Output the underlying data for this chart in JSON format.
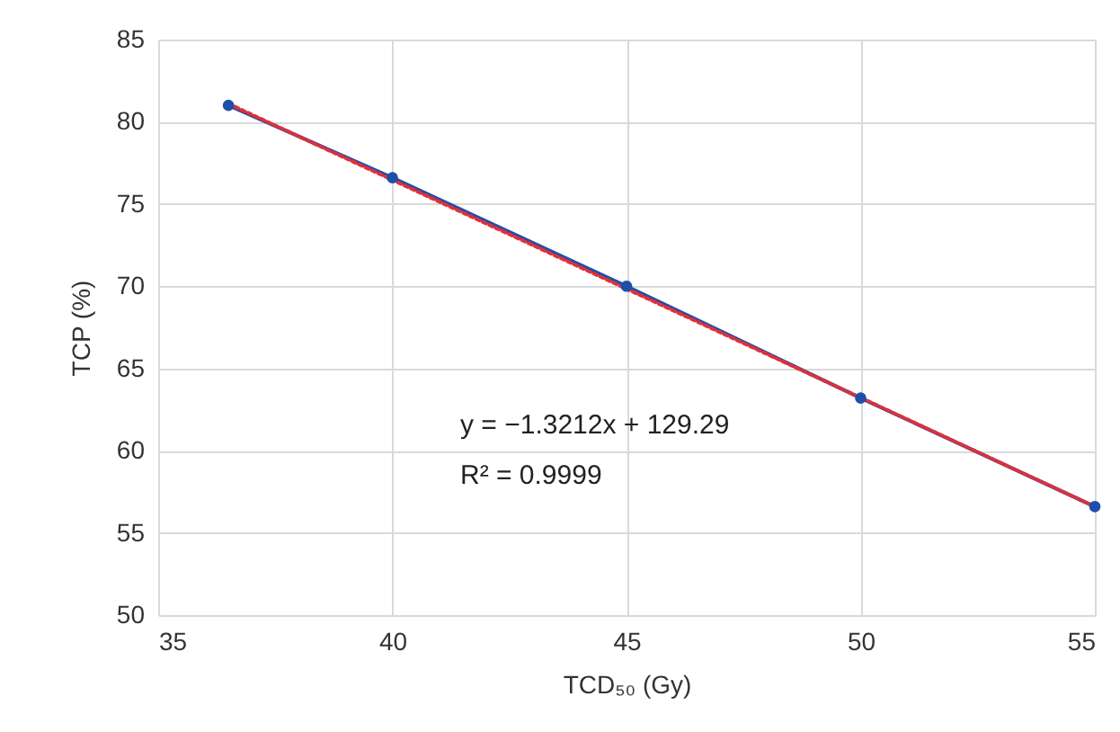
{
  "chart_data": {
    "type": "line",
    "xlabel": "TCD₅₀ (Gy)",
    "ylabel": "TCP (%)",
    "xlim": [
      35,
      55
    ],
    "xticks": [
      35,
      40,
      45,
      50,
      55
    ],
    "ylim": [
      50,
      85
    ],
    "yticks": [
      50,
      55,
      60,
      65,
      70,
      75,
      80,
      85
    ],
    "grid": true,
    "series": [
      {
        "color": "#1f4fa8",
        "marker": "circle",
        "line_style": "solid",
        "x": [
          36.5,
          40,
          45,
          50,
          55
        ],
        "values": [
          81.0,
          76.6,
          70.0,
          63.2,
          56.6
        ]
      },
      {
        "color": "#e0303a",
        "marker": "none",
        "line_style": "dotted",
        "x": [
          36.5,
          55
        ],
        "values": [
          81.1,
          56.6
        ]
      }
    ],
    "annotations": [
      "y = −1.3212x + 129.29",
      "R² = 0.9999"
    ]
  }
}
